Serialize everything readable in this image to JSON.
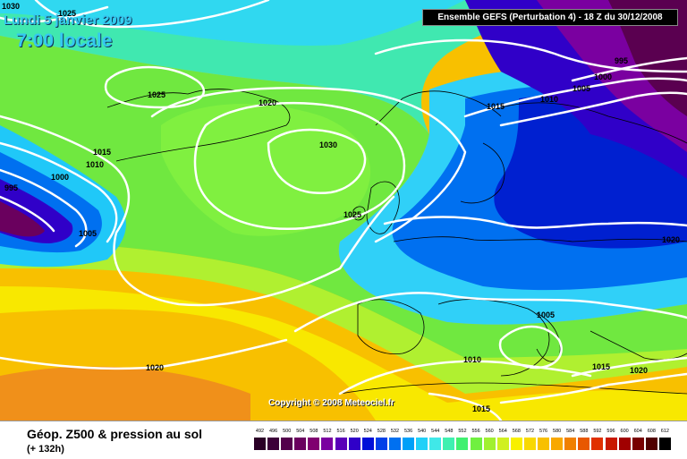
{
  "header": {
    "date": "Lundi 5 janvier 2009",
    "time": "7:00 locale",
    "run": "Ensemble GEFS (Perturbation 4) - 18 Z du 30/12/2008"
  },
  "copyright": "Copyright © 2008 Meteociel.fr",
  "footer": {
    "title": "Géop. Z500 & pression au sol",
    "subtitle": "(+ 132h)"
  },
  "legend": {
    "values": [
      "492",
      "496",
      "500",
      "504",
      "508",
      "512",
      "516",
      "520",
      "524",
      "528",
      "532",
      "536",
      "540",
      "544",
      "548",
      "552",
      "556",
      "560",
      "564",
      "568",
      "572",
      "576",
      "580",
      "584",
      "588",
      "592",
      "596",
      "600",
      "604",
      "608",
      "612"
    ],
    "colors": [
      "#2a0026",
      "#3c0038",
      "#54004c",
      "#6a005e",
      "#800070",
      "#7a00a0",
      "#5a00b8",
      "#3000c8",
      "#0010d8",
      "#0040e8",
      "#0070f0",
      "#00a0f8",
      "#20d0f8",
      "#40e8e8",
      "#40f0b0",
      "#40f070",
      "#70f040",
      "#a0f030",
      "#d0f020",
      "#f8f000",
      "#f8d800",
      "#f8c000",
      "#f8a800",
      "#f08000",
      "#e85800",
      "#e03000",
      "#c81800",
      "#a00000",
      "#780000",
      "#500000",
      "#000000"
    ]
  },
  "isobars": [
    {
      "label": "1030",
      "id": "label-1030-nw"
    },
    {
      "label": "1025",
      "id": "label-1025-top"
    },
    {
      "label": "1025",
      "id": "label-1025-greenland"
    },
    {
      "label": "1020",
      "id": "label-1020-north"
    },
    {
      "label": "1030",
      "id": "label-1030-center"
    },
    {
      "label": "1015",
      "id": "label-1015-west"
    },
    {
      "label": "1010",
      "id": "label-1010-west"
    },
    {
      "label": "1000",
      "id": "label-1000-west"
    },
    {
      "label": "995",
      "id": "label-995-west"
    },
    {
      "label": "1005",
      "id": "label-1005-west"
    },
    {
      "label": "1025",
      "id": "label-1025-uk"
    },
    {
      "label": "1015",
      "id": "label-1015-scand"
    },
    {
      "label": "1010",
      "id": "label-1010-scand"
    },
    {
      "label": "1005",
      "id": "label-1005-ne"
    },
    {
      "label": "1000",
      "id": "label-1000-ne"
    },
    {
      "label": "995",
      "id": "label-995-ne"
    },
    {
      "label": "1020",
      "id": "label-1020-east"
    },
    {
      "label": "1005",
      "id": "label-1005-italy"
    },
    {
      "label": "1010",
      "id": "label-1010-iberia"
    },
    {
      "label": "1015",
      "id": "label-1015-africa"
    },
    {
      "label": "1015",
      "id": "label-1015-greece"
    },
    {
      "label": "1020",
      "id": "label-1020-turkey"
    },
    {
      "label": "1020",
      "id": "label-1020-atlantic"
    }
  ]
}
